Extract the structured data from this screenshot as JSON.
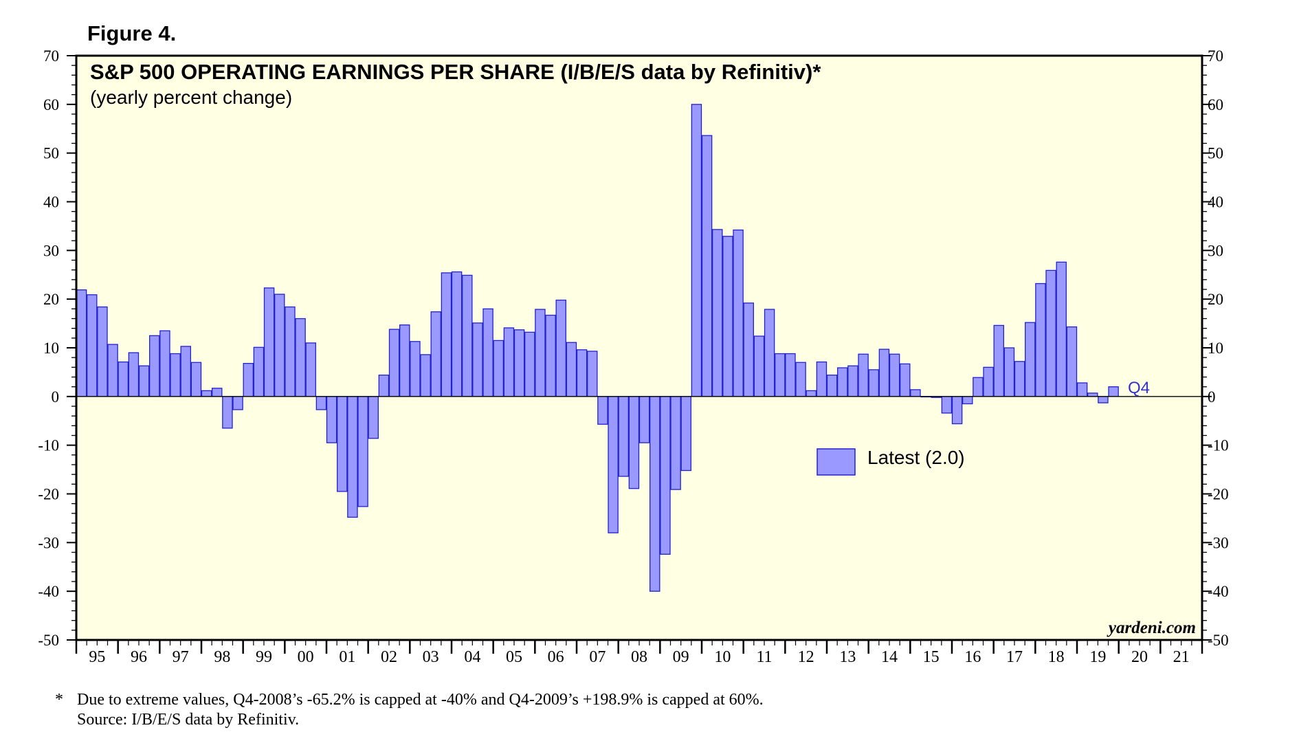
{
  "figure_label": "Figure 4.",
  "footnote": {
    "marker": "*",
    "line1": "Due to extreme values, Q4-2008’s -65.2% is capped at -40% and Q4-2009’s +198.9% is capped at 60%.",
    "line2": "Source: I/B/E/S data by Refinitiv."
  },
  "credit": "yardeni.com",
  "colors": {
    "plot_background": "#ffffe4",
    "bar_fill": "#9999ff",
    "bar_stroke": "#2222cc",
    "latest_label": "#3333cc"
  },
  "chart_data": {
    "type": "bar",
    "title": "S&P 500 OPERATING EARNINGS PER SHARE (I/B/E/S data by Refinitiv)*",
    "subtitle": "(yearly percent change)",
    "xlabel": "",
    "ylabel": "",
    "ylim": [
      -50,
      70
    ],
    "y_ticks": [
      70,
      60,
      50,
      40,
      30,
      20,
      10,
      0,
      -10,
      -20,
      -30,
      -40,
      -50
    ],
    "y_axis_both_sides": true,
    "x_year_labels": [
      "95",
      "96",
      "97",
      "98",
      "99",
      "00",
      "01",
      "02",
      "03",
      "04",
      "05",
      "06",
      "07",
      "08",
      "09",
      "10",
      "11",
      "12",
      "13",
      "14",
      "15",
      "16",
      "17",
      "18",
      "19",
      "20",
      "21"
    ],
    "x_start": "1995",
    "frequency": "quarterly",
    "series": [
      {
        "values": [
          21.9,
          20.9,
          18.4,
          10.7,
          7.1,
          9.0,
          6.3,
          12.5,
          13.5,
          8.8,
          10.3,
          7.0,
          1.2,
          1.7,
          -6.5,
          -2.7,
          6.8,
          10.1,
          22.3,
          21.0,
          18.4,
          16.0,
          11.0,
          -2.7,
          -9.5,
          -19.5,
          -24.8,
          -22.6,
          -8.6,
          4.4,
          13.8,
          14.7,
          11.3,
          8.6,
          17.4,
          25.4,
          25.6,
          24.9,
          15.1,
          18.0,
          11.5,
          14.1,
          13.7,
          13.2,
          17.9,
          16.7,
          19.8,
          11.1,
          9.6,
          9.3,
          -5.7,
          -28.0,
          -16.4,
          -18.9,
          -9.5,
          -40.0,
          -32.4,
          -19.1,
          -15.2,
          60.0,
          53.6,
          34.3,
          32.9,
          34.2,
          19.2,
          12.4,
          17.9,
          8.8,
          8.8,
          7.0,
          1.2,
          7.1,
          4.4,
          5.9,
          6.3,
          8.7,
          5.5,
          9.7,
          8.7,
          6.7,
          1.4,
          0.0,
          -0.2,
          -3.4,
          -5.6,
          -1.5,
          3.9,
          6.0,
          14.6,
          10.0,
          7.2,
          15.2,
          23.2,
          25.9,
          27.6,
          14.3,
          2.8,
          0.7,
          -1.3,
          2.0
        ]
      }
    ],
    "legend": {
      "label": "Latest (2.0)",
      "placement": "center-right"
    },
    "annotation": "Q4"
  }
}
